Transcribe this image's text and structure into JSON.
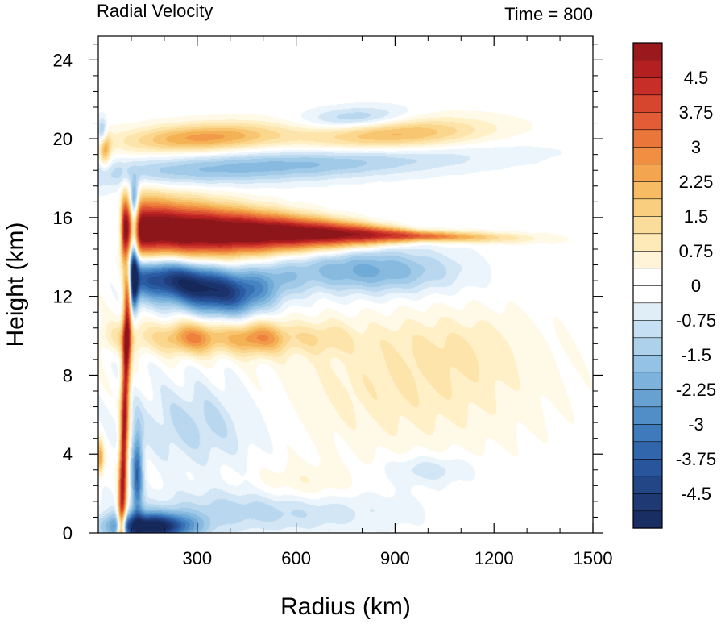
{
  "chart_data": {
    "type": "heatmap",
    "title": "Radial Velocity",
    "subtitle": "Time = 800",
    "xlabel": "Radius (km)",
    "ylabel": "Height (km)",
    "xlim": [
      0,
      1500
    ],
    "ylim": [
      0,
      25.2
    ],
    "x_ticks": [
      "300",
      "600",
      "900",
      "1200",
      "1500"
    ],
    "x_tick_values": [
      300,
      600,
      900,
      1200,
      1500
    ],
    "y_ticks": [
      "0",
      "4",
      "8",
      "12",
      "16",
      "20",
      "24"
    ],
    "y_tick_values": [
      0,
      4,
      8,
      12,
      16,
      20,
      24
    ],
    "colorbar": {
      "min": -5.25,
      "max": 5.25,
      "step": 0.375,
      "labels": [
        "4.5",
        "3.75",
        "3",
        "2.25",
        "1.5",
        "0.75",
        "0",
        "-0.75",
        "-1.5",
        "-2.25",
        "-3",
        "-3.75",
        "-4.5"
      ],
      "label_values": [
        4.5,
        3.75,
        3,
        2.25,
        1.5,
        0.75,
        0,
        -0.75,
        -1.5,
        -2.25,
        -3,
        -3.75,
        -4.5
      ]
    },
    "features": [
      {
        "name": "upper-level outflow",
        "radius_km": [
          70,
          1100
        ],
        "height_km": [
          14,
          17.5
        ],
        "value_ms": 5.0
      },
      {
        "name": "inflow layer below outflow",
        "radius_km": [
          100,
          600
        ],
        "height_km": [
          11.5,
          13.5
        ],
        "value_ms": -5.0
      },
      {
        "name": "mid-level outflow band",
        "radius_km": [
          150,
          650
        ],
        "height_km": [
          9.3,
          10.6
        ],
        "value_ms": 2.6
      },
      {
        "name": "upper inflow band",
        "radius_km": [
          200,
          1100
        ],
        "height_km": [
          17,
          19
        ],
        "value_ms": -1.5
      },
      {
        "name": "upper outflow band",
        "radius_km": [
          150,
          1200
        ],
        "height_km": [
          19,
          20.7
        ],
        "value_ms": 3.0
      },
      {
        "name": "boundary layer inflow",
        "radius_km": [
          60,
          300
        ],
        "height_km": [
          0,
          1
        ],
        "value_ms": -5.0
      },
      {
        "name": "eyewall outflow",
        "radius_km": [
          65,
          100
        ],
        "height_km": [
          0.5,
          13
        ],
        "value_ms": 4.0
      },
      {
        "name": "weak outflow region",
        "radius_km": [
          650,
          1300
        ],
        "height_km": [
          4.5,
          10
        ],
        "value_ms": 0.8
      }
    ]
  }
}
